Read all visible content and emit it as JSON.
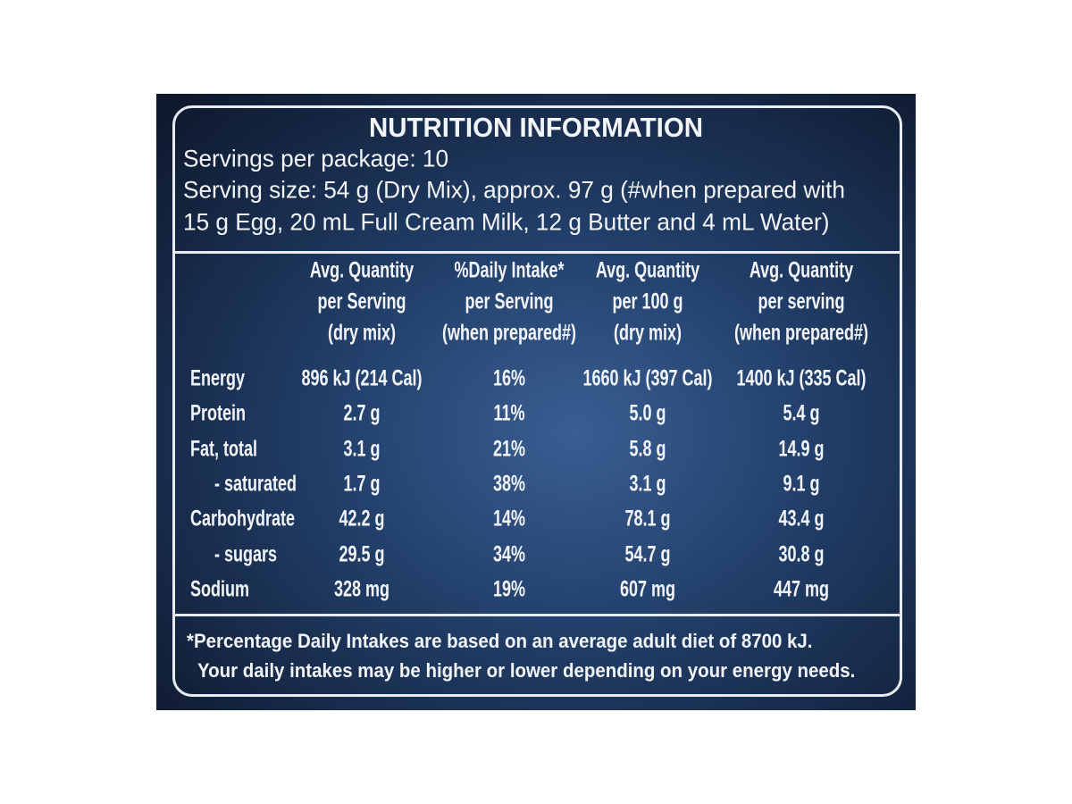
{
  "title": "NUTRITION INFORMATION",
  "servings": "Servings per package: 10",
  "serving_size": [
    "Serving size: 54 g (Dry Mix), approx. 97 g (#when prepared with",
    "15 g Egg, 20 mL Full Cream Milk, 12 g Butter and 4 mL Water)"
  ],
  "table": {
    "columns": [
      [
        "Avg. Quantity",
        "per Serving",
        "(dry mix)"
      ],
      [
        "%Daily Intake*",
        "per Serving",
        "(when prepared#)"
      ],
      [
        "Avg. Quantity",
        "per 100 g",
        "(dry mix)"
      ],
      [
        "Avg. Quantity",
        "per serving",
        "(when prepared#)"
      ]
    ],
    "rows": [
      [
        "Energy",
        "896 kJ (214 Cal)",
        "16%",
        "1660 kJ (397 Cal)",
        "1400 kJ (335 Cal)"
      ],
      [
        "Protein",
        "2.7 g",
        "11%",
        "5.0 g",
        "5.4 g"
      ],
      [
        "Fat, total",
        "3.1 g",
        "21%",
        "5.8 g",
        "14.9 g"
      ],
      [
        "- saturated",
        "1.7 g",
        "38%",
        "3.1 g",
        "9.1 g"
      ],
      [
        "Carbohydrate",
        "42.2 g",
        "14%",
        "78.1 g",
        "43.4 g"
      ],
      [
        "- sugars",
        "29.5 g",
        "34%",
        "54.7 g",
        "30.8 g"
      ],
      [
        "Sodium",
        "328 mg",
        "19%",
        "607 mg",
        "447 mg"
      ]
    ]
  },
  "footnote": [
    "*Percentage Daily Intakes are based on an average adult diet of 8700 kJ.",
    "Your daily intakes may be higher or lower depending on your energy needs."
  ]
}
